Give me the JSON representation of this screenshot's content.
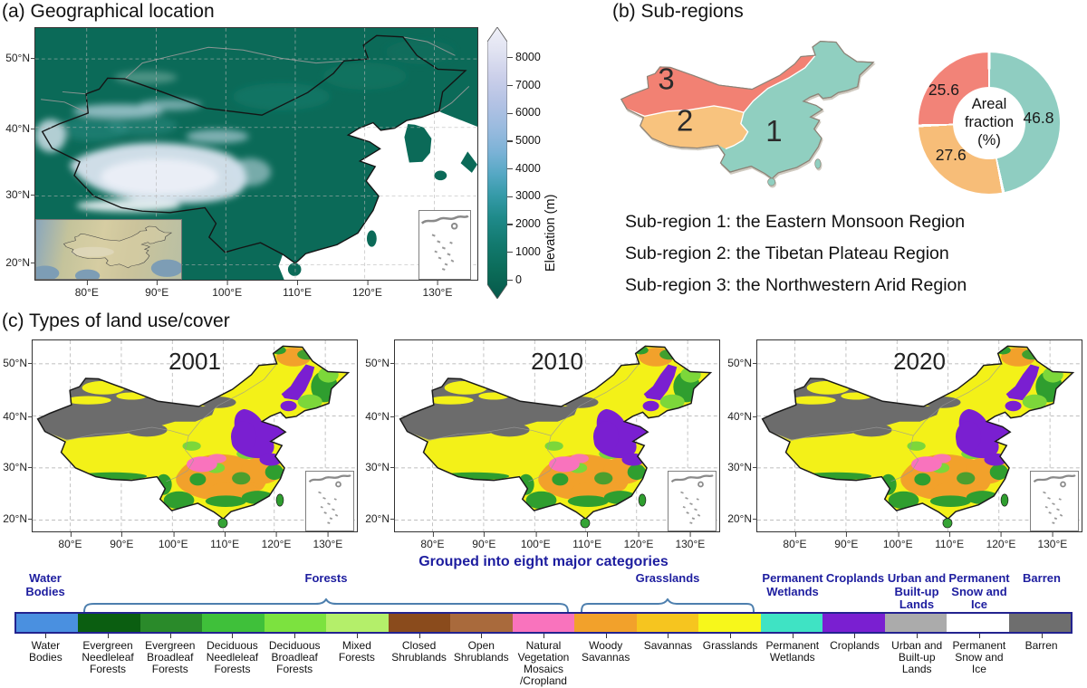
{
  "panel_a": {
    "title": "(a) Geographical location",
    "colorbar": {
      "label": "Elevation (m)",
      "ticks": [
        "8000",
        "7000",
        "6000",
        "5000",
        "4000",
        "3000",
        "2000",
        "1000",
        "0"
      ]
    }
  },
  "axes": {
    "lat": [
      "50°N",
      "40°N",
      "30°N",
      "20°N"
    ],
    "lon": [
      "80°E",
      "90°E",
      "100°E",
      "110°E",
      "120°E",
      "130°E"
    ]
  },
  "panel_b": {
    "title": "(b) Sub-regions",
    "region_numbers": [
      "1",
      "2",
      "3"
    ],
    "donut": {
      "center_label": "Areal\nfraction\n(%)",
      "slices": [
        {
          "name": "Sub-region 1",
          "value": 46.8,
          "color": "#8fcdc1"
        },
        {
          "name": "Sub-region 2",
          "value": 27.6,
          "color": "#f7bd78"
        },
        {
          "name": "Sub-region 3",
          "value": 25.6,
          "color": "#f28378"
        }
      ]
    },
    "subregion_lines": [
      "Sub-region 1: the Eastern Monsoon Region",
      "Sub-region 2: the Tibetan Plateau Region",
      "Sub-region 3: the Northwestern Arid Region"
    ]
  },
  "panel_c": {
    "title": "(c) Types of land use/cover",
    "years": [
      "2001",
      "2010",
      "2020"
    ]
  },
  "legend": {
    "title": "Grouped into eight major categories",
    "groups": [
      {
        "label": "Water\nBodies"
      },
      {
        "label": "Forests"
      },
      {
        "label": "Grasslands"
      },
      {
        "label": "Permanent\nWetlands"
      },
      {
        "label": "Croplands"
      },
      {
        "label": "Urban and\nBuilt-up\nLands"
      },
      {
        "label": "Permanent\nSnow and\nIce"
      },
      {
        "label": "Barren"
      }
    ],
    "items": [
      {
        "label": "Water\nBodies",
        "color": "#4a90e0"
      },
      {
        "label": "Evergreen\nNeedleleaf\nForests",
        "color": "#0b5e11"
      },
      {
        "label": "Evergreen\nBroadleaf\nForests",
        "color": "#2a8a2a"
      },
      {
        "label": "Deciduous\nNeedleleaf\nForests",
        "color": "#3fc03a"
      },
      {
        "label": "Deciduous\nBroadleaf\nForests",
        "color": "#7ce23f"
      },
      {
        "label": "Mixed\nForests",
        "color": "#b4ef6a"
      },
      {
        "label": "Closed\nShrublands",
        "color": "#8a4b1c"
      },
      {
        "label": "Open\nShrublands",
        "color": "#a96a3c"
      },
      {
        "label": "Natural\nVegetation\nMosaics\n/Cropland",
        "color": "#f973bd"
      },
      {
        "label": "Woody\nSavannas",
        "color": "#f2a12b"
      },
      {
        "label": "Savannas",
        "color": "#f6c51f"
      },
      {
        "label": "Grasslands",
        "color": "#f7f71b"
      },
      {
        "label": "Permanent\nWetlands",
        "color": "#3fe3c4"
      },
      {
        "label": "Croplands",
        "color": "#7a1fd1"
      },
      {
        "label": "Urban and\nBuilt-up\nLands",
        "color": "#ababab"
      },
      {
        "label": "Permanent\nSnow and\nIce",
        "color": "#ffffff"
      },
      {
        "label": "Barren",
        "color": "#6e6e6e"
      }
    ]
  },
  "chart_data": {
    "type": "pie",
    "title": "Areal fraction (%)",
    "labels": [
      "Sub-region 1: the Eastern Monsoon Region",
      "Sub-region 2: the Tibetan Plateau Region",
      "Sub-region 3: the Northwestern Arid Region"
    ],
    "values": [
      46.8,
      27.6,
      25.6
    ],
    "colors": [
      "#8fcdc1",
      "#f7bd78",
      "#f28378"
    ],
    "legend_position": "below",
    "donut": true
  }
}
